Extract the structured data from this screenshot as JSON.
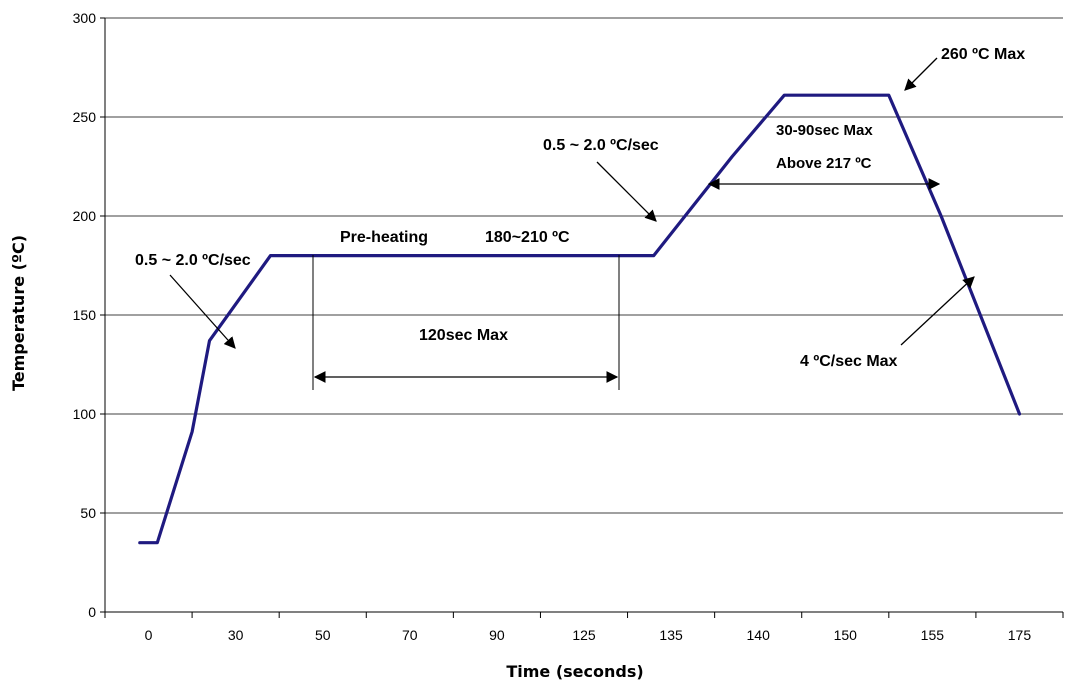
{
  "chart_data": {
    "type": "line",
    "xlabel": "Time (seconds)",
    "ylabel": "Temperature (ºC)",
    "categories": [
      "0",
      "30",
      "50",
      "70",
      "90",
      "125",
      "135",
      "140",
      "150",
      "155",
      "175"
    ],
    "ylim": [
      0,
      300
    ],
    "yticks": [
      "0",
      "50",
      "100",
      "150",
      "200",
      "250",
      "300"
    ],
    "grid": true,
    "line_color": "#1f1a80",
    "series": [
      {
        "points": [
          {
            "x": -0.1,
            "y": 35
          },
          {
            "x": 0.1,
            "y": 35
          },
          {
            "x": 0.5,
            "y": 91
          },
          {
            "x": 0.7,
            "y": 137
          },
          {
            "x": 1.4,
            "y": 180
          },
          {
            "x": 5.8,
            "y": 180
          },
          {
            "x": 6.7,
            "y": 230
          },
          {
            "x": 7.3,
            "y": 261
          },
          {
            "x": 8.5,
            "y": 261
          },
          {
            "x": 9.1,
            "y": 200
          },
          {
            "x": 10.0,
            "y": 100
          }
        ]
      }
    ],
    "annotations": {
      "ramp1": "0.5 ~ 2.0 ºC/sec",
      "preheat_a": "Pre-heating",
      "preheat_b": "180~210 ºC",
      "preheat_time": "120sec Max",
      "ramp2": "0.5 ~ 2.0 ºC/sec",
      "peak": "260 ºC Max",
      "reflow_time": "30-90sec Max",
      "reflow_temp": "Above 217 ºC",
      "cooling": "4 ºC/sec Max"
    }
  }
}
